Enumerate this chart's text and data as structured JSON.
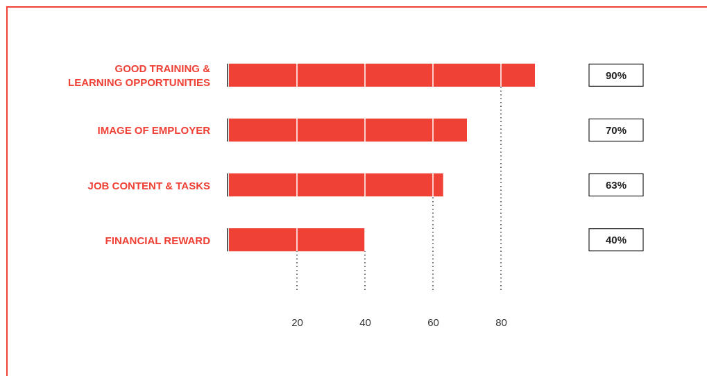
{
  "chart_data": {
    "type": "bar",
    "orientation": "horizontal",
    "categories": [
      "GOOD TRAINING & LEARNING OPPORTUNITIES",
      "IMAGE OF EMPLOYER",
      "JOB CONTENT & TASKS",
      "FINANCIAL REWARD"
    ],
    "values": [
      90,
      70,
      63,
      40
    ],
    "color": "#ef4135",
    "value_labels": [
      "90%",
      "70%",
      "63%",
      "40%"
    ],
    "xlim": [
      0,
      90
    ],
    "xticks": [
      20,
      40,
      60,
      80
    ],
    "grid": "x"
  }
}
